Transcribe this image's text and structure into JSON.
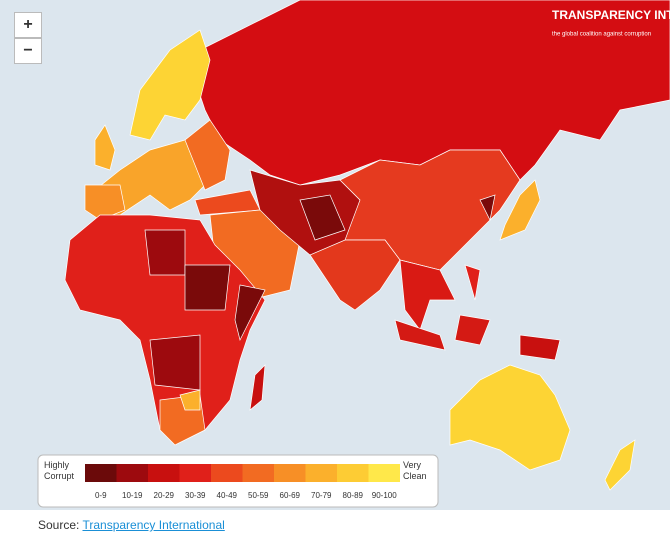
{
  "map_controls": {
    "zoom_in": "+",
    "zoom_out": "−"
  },
  "logo": {
    "name": "TRANSPARENCY INTERNATIONAL",
    "tagline": "the global coalition against corruption"
  },
  "legend": {
    "low_label": "Highly Corrupt",
    "high_label": "Very Clean",
    "bins": [
      {
        "label": "0-9",
        "color": "#6b0a0a"
      },
      {
        "label": "10-19",
        "color": "#9d0a0e"
      },
      {
        "label": "20-29",
        "color": "#c8100f"
      },
      {
        "label": "30-39",
        "color": "#e0201a"
      },
      {
        "label": "40-49",
        "color": "#ec4a1e"
      },
      {
        "label": "50-59",
        "color": "#f26b22"
      },
      {
        "label": "60-69",
        "color": "#f78f26"
      },
      {
        "label": "70-79",
        "color": "#fbb02c"
      },
      {
        "label": "80-89",
        "color": "#fdcc34"
      },
      {
        "label": "90-100",
        "color": "#ffe84a"
      }
    ]
  },
  "source": {
    "prefix": "Source:",
    "link": "Transparency International"
  }
}
